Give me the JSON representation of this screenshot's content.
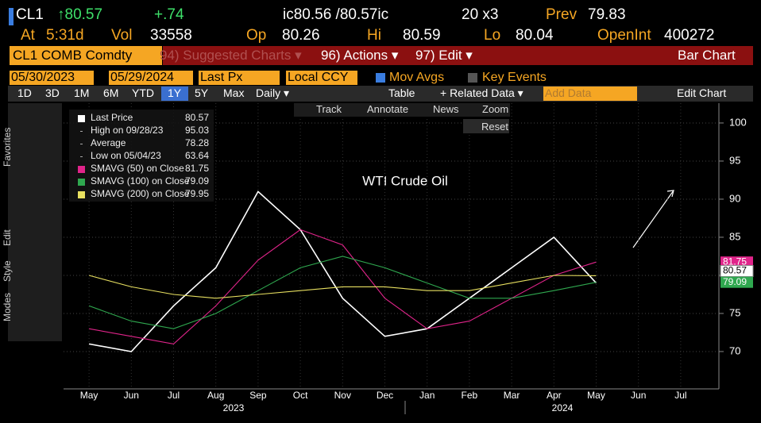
{
  "header": {
    "row1": [
      "CL1",
      "↑80.57",
      "+.74",
      "ic80.56 /80.57ic",
      "20 x3",
      "Prev",
      "79.83"
    ],
    "row2": [
      "At",
      "5:31d",
      "Vol",
      "33558",
      "Op",
      "80.26",
      "Hi",
      "80.59",
      "Lo",
      "80.04",
      "OpenInt",
      "400272"
    ],
    "menu": [
      "CL1 COMB Comdty",
      "94) Suggested Charts ▾",
      "96) Actions ▾",
      "97) Edit ▾",
      "Bar Chart"
    ],
    "inputs": [
      "05/30/2023",
      "05/29/2024",
      "Last Px",
      "Local CCY",
      "Mov Avgs",
      "Key Events"
    ],
    "buttons": [
      "1D",
      "3D",
      "1M",
      "6M",
      "YTD",
      "1Y",
      "5Y",
      "Max",
      "Daily ▾",
      "Table",
      "+ Related Data ▾",
      "Add Data",
      "Edit Chart"
    ],
    "toolbar": [
      "Track",
      "Annotate",
      "News",
      "Zoom",
      "Reset"
    ],
    "side_tabs": [
      "Favorites",
      "Edit",
      "Style",
      "Modes"
    ]
  },
  "chart_data": {
    "type": "line",
    "annotation": "WTI Crude Oil",
    "categories": [
      "May",
      "Jun",
      "Jul",
      "Aug",
      "Sep",
      "Oct",
      "Nov",
      "Dec",
      "Jan",
      "Feb",
      "Mar",
      "Apr",
      "May",
      "Jun",
      "Jul"
    ],
    "years": [
      "2023",
      "2024"
    ],
    "series": [
      {
        "name": "Last Price",
        "color": "#ffffff",
        "legend_value": "80.57",
        "values": [
          71,
          70,
          76,
          81,
          91,
          86,
          77,
          72,
          73,
          77,
          81,
          85,
          79,
          null,
          null
        ]
      },
      {
        "name": "SMAVG (50)  on Close",
        "color": "#e0248a",
        "legend_value": "81.75",
        "values": [
          73,
          72,
          71,
          76,
          82,
          86,
          84,
          77,
          73,
          74,
          77,
          80,
          81.75,
          null,
          null
        ]
      },
      {
        "name": "SMAVG (100)  on Close",
        "color": "#2fa84f",
        "legend_value": "79.09",
        "values": [
          76,
          74,
          73,
          75,
          78,
          81,
          82.5,
          81,
          79,
          77,
          77,
          78,
          79.09,
          null,
          null
        ]
      },
      {
        "name": "SMAVG (200)  on Close",
        "color": "#e8e060",
        "legend_value": "79.95",
        "values": [
          80,
          78.5,
          77.5,
          77,
          77.5,
          78,
          78.5,
          78.5,
          78,
          78,
          79,
          80,
          79.95,
          null,
          null
        ]
      }
    ],
    "stats": [
      {
        "label": "High on 09/28/23",
        "value": "95.03"
      },
      {
        "label": "Average",
        "value": "78.28"
      },
      {
        "label": "Low on 05/04/23",
        "value": "63.64"
      }
    ],
    "price_tags": [
      {
        "value": 81.75,
        "label": "81.75",
        "color": "#e0248a"
      },
      {
        "value": 80.57,
        "label": "80.57",
        "color": "#ffffff"
      },
      {
        "value": 79.09,
        "label": "79.09",
        "color": "#2fa84f"
      }
    ],
    "ylim": [
      65.1,
      101.35
    ],
    "yticks": [
      70,
      75,
      80,
      85,
      90,
      95,
      100
    ],
    "grid": true
  }
}
